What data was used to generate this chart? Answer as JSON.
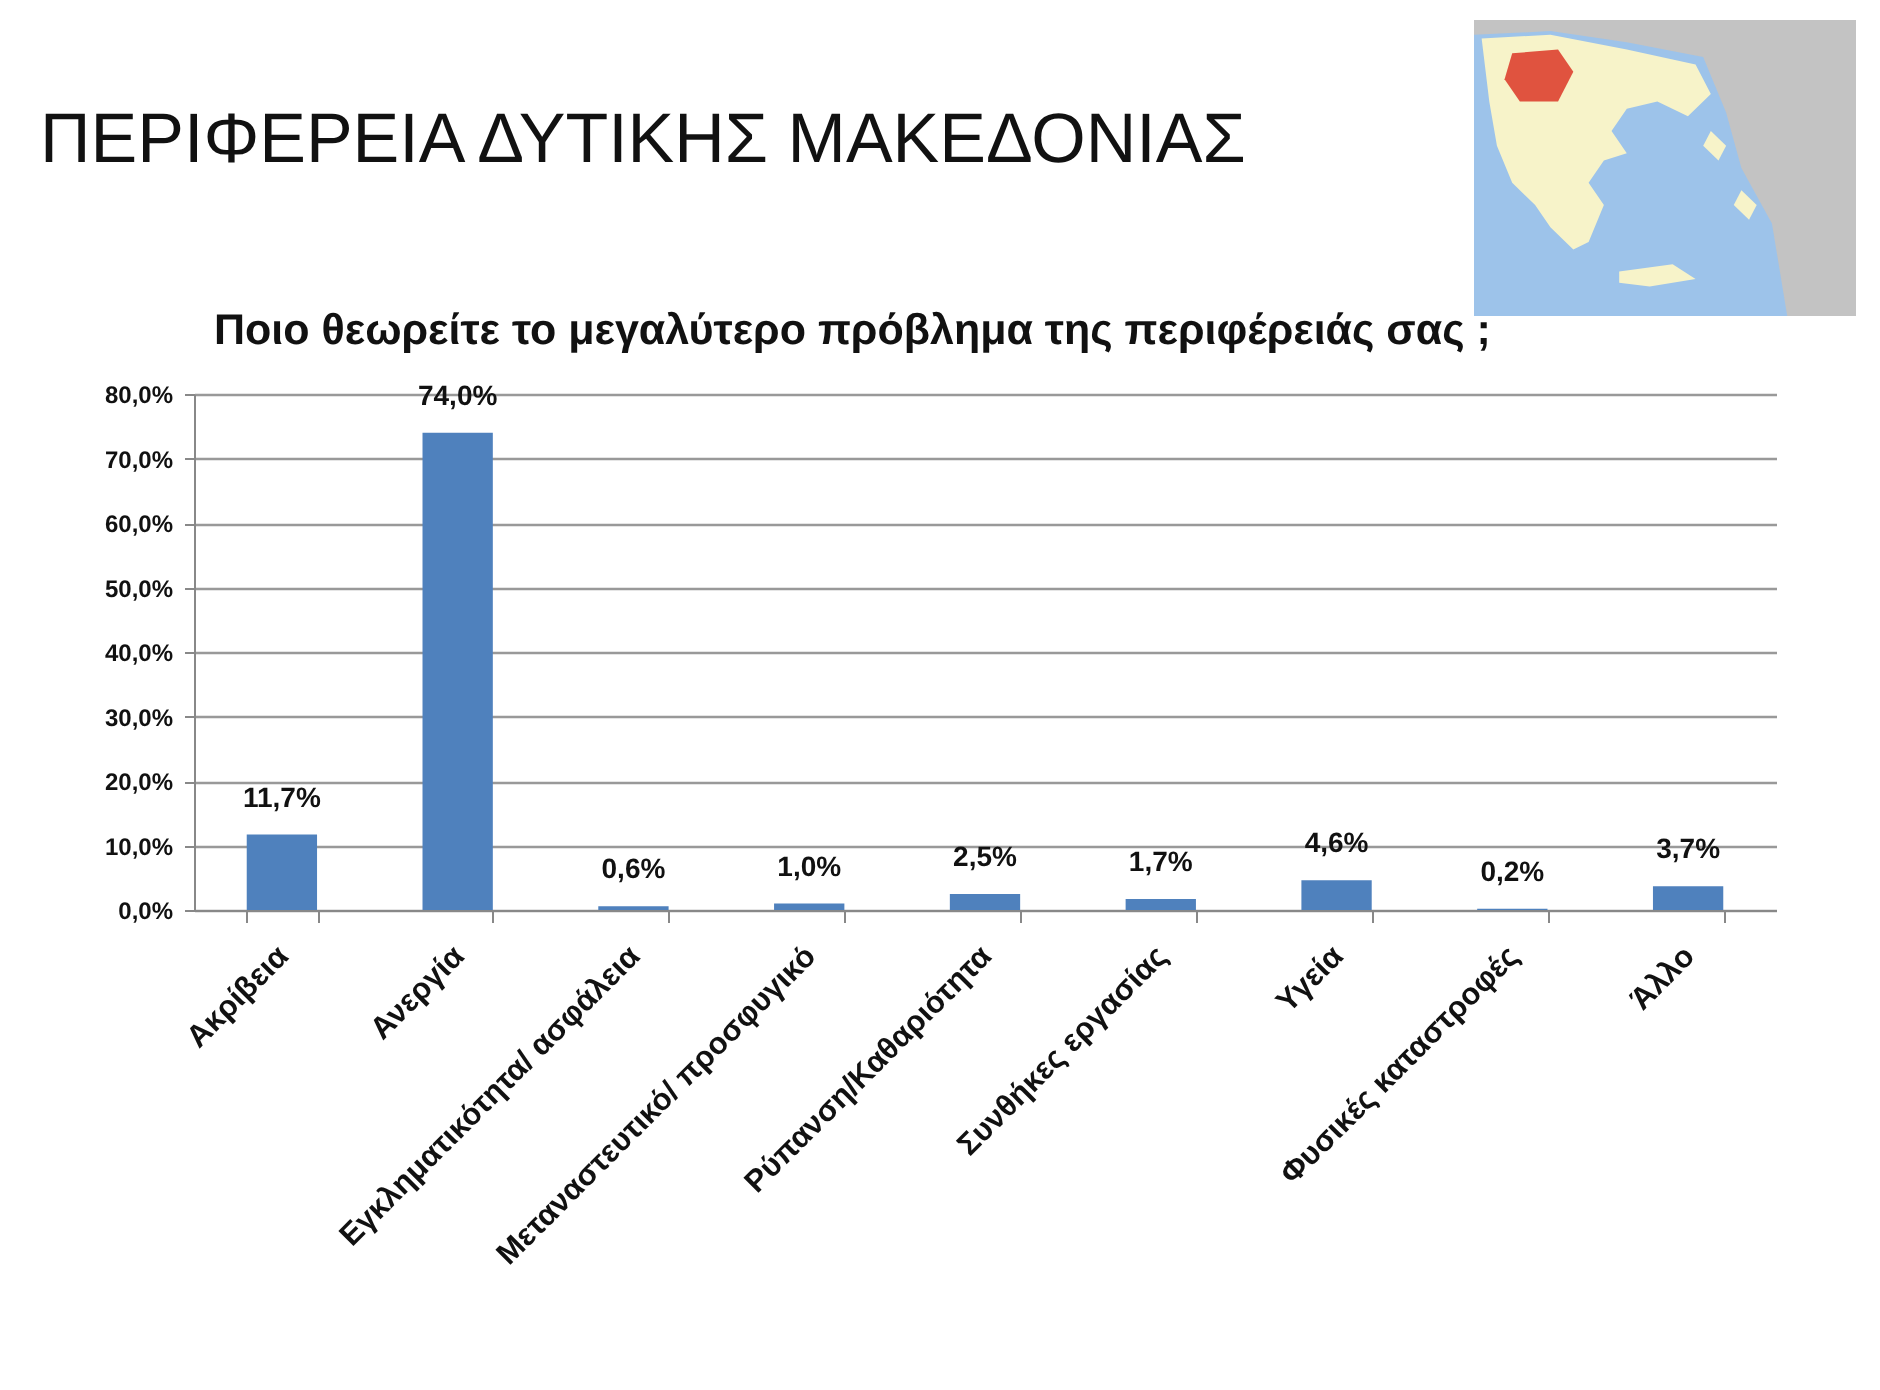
{
  "chart_data": {
    "type": "bar",
    "title": "ΠΕΡΙΦΕΡΕΙΑ ΔΥΤΙΚΗΣ ΜΑΚΕΔΟΝΙΑΣ",
    "subtitle": "Ποιο θεωρείτε το μεγαλύτερο πρόβλημα της περιφέρειάς σας ;",
    "categories": [
      "Ακρίβεια",
      "Ανεργία",
      "Εγκληματικότητα/ ασφάλεια",
      "Μεταναστευτικό/ προσφυγικό",
      "Ρύπανση/Καθαριότητα",
      "Συνθήκες εργασίας",
      "Υγεία",
      "Φυσικές καταστροφές",
      "Άλλο"
    ],
    "values": [
      11.7,
      74.0,
      0.6,
      1.0,
      2.5,
      1.7,
      4.6,
      0.2,
      3.7
    ],
    "value_labels": [
      "11,7%",
      "74,0%",
      "0,6%",
      "1,0%",
      "2,5%",
      "1,7%",
      "4,6%",
      "0,2%",
      "3,7%"
    ],
    "color": "#4f81bd",
    "ylim": [
      0,
      80
    ],
    "yticks": [
      {
        "value": 0,
        "label": "0,0%"
      },
      {
        "value": 10,
        "label": "10,0%"
      },
      {
        "value": 20,
        "label": "20,0%"
      },
      {
        "value": 30,
        "label": "30,0%"
      },
      {
        "value": 40,
        "label": "40,0%"
      },
      {
        "value": 50,
        "label": "50,0%"
      },
      {
        "value": 60,
        "label": "60,0%"
      },
      {
        "value": 70,
        "label": "70,0%"
      },
      {
        "value": 80,
        "label": "80,0%"
      }
    ],
    "grid": "y"
  }
}
